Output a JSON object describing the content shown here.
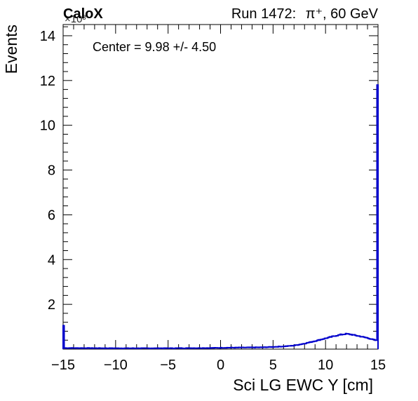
{
  "header": {
    "experiment": "CaloX",
    "run_label": "Run 1472:",
    "beam": "π⁺, 60 GeV"
  },
  "chart_data": {
    "type": "histogram",
    "xlabel": "Sci LG EWC Y [cm]",
    "ylabel": "Events",
    "y_multiplier": "×10³",
    "xlim": [
      -15,
      15
    ],
    "ylim": [
      0,
      14.5
    ],
    "xticks": [
      -15,
      -10,
      -5,
      0,
      5,
      10,
      15
    ],
    "xtick_labels": [
      "−15",
      "−10",
      "−5",
      "0",
      "5",
      "10",
      "15"
    ],
    "yticks": [
      2,
      4,
      6,
      8,
      10,
      12,
      14
    ],
    "ytick_labels": [
      "2",
      "4",
      "6",
      "8",
      "10",
      "12",
      "14"
    ],
    "annotation": "Center = 9.98 +/- 4.50",
    "grid": false,
    "line_color": "#0000cc",
    "bin_width": 0.1,
    "edge_bins": {
      "first": 1.05,
      "last": 11.8
    },
    "profile_points": [
      [
        -14.9,
        0.05
      ],
      [
        -10,
        0.04
      ],
      [
        -5,
        0.04
      ],
      [
        -1,
        0.05
      ],
      [
        0,
        0.06
      ],
      [
        2,
        0.07
      ],
      [
        4,
        0.08
      ],
      [
        6,
        0.12
      ],
      [
        7,
        0.16
      ],
      [
        8,
        0.25
      ],
      [
        9,
        0.36
      ],
      [
        10,
        0.48
      ],
      [
        11,
        0.6
      ],
      [
        11.5,
        0.65
      ],
      [
        12,
        0.68
      ],
      [
        12.5,
        0.65
      ],
      [
        13,
        0.6
      ],
      [
        13.5,
        0.55
      ],
      [
        14,
        0.5
      ],
      [
        14.5,
        0.43
      ],
      [
        14.9,
        0.38
      ]
    ]
  }
}
